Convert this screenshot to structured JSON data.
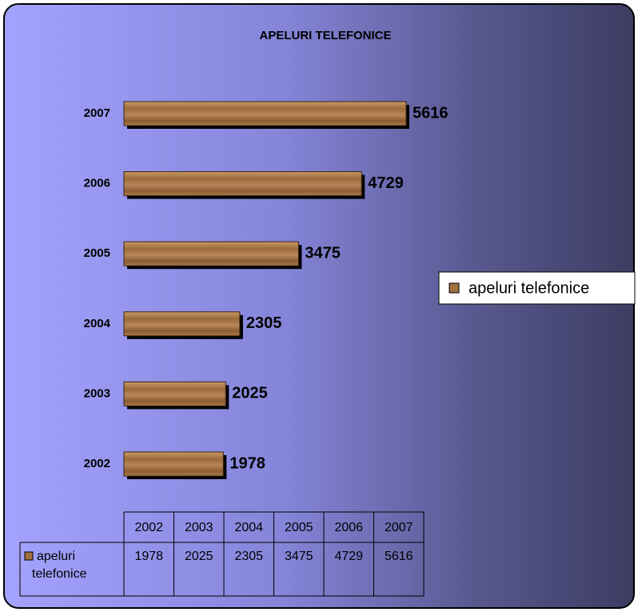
{
  "chart_data": {
    "type": "bar",
    "orientation": "horizontal",
    "title": "APELURI TELEFONICE",
    "categories": [
      "2002",
      "2003",
      "2004",
      "2005",
      "2006",
      "2007"
    ],
    "series": [
      {
        "name": "apeluri telefonice",
        "color": "#a0703f",
        "values": [
          1978,
          2025,
          2305,
          3475,
          4729,
          5616
        ]
      }
    ],
    "legend": "right",
    "data_table": true
  }
}
